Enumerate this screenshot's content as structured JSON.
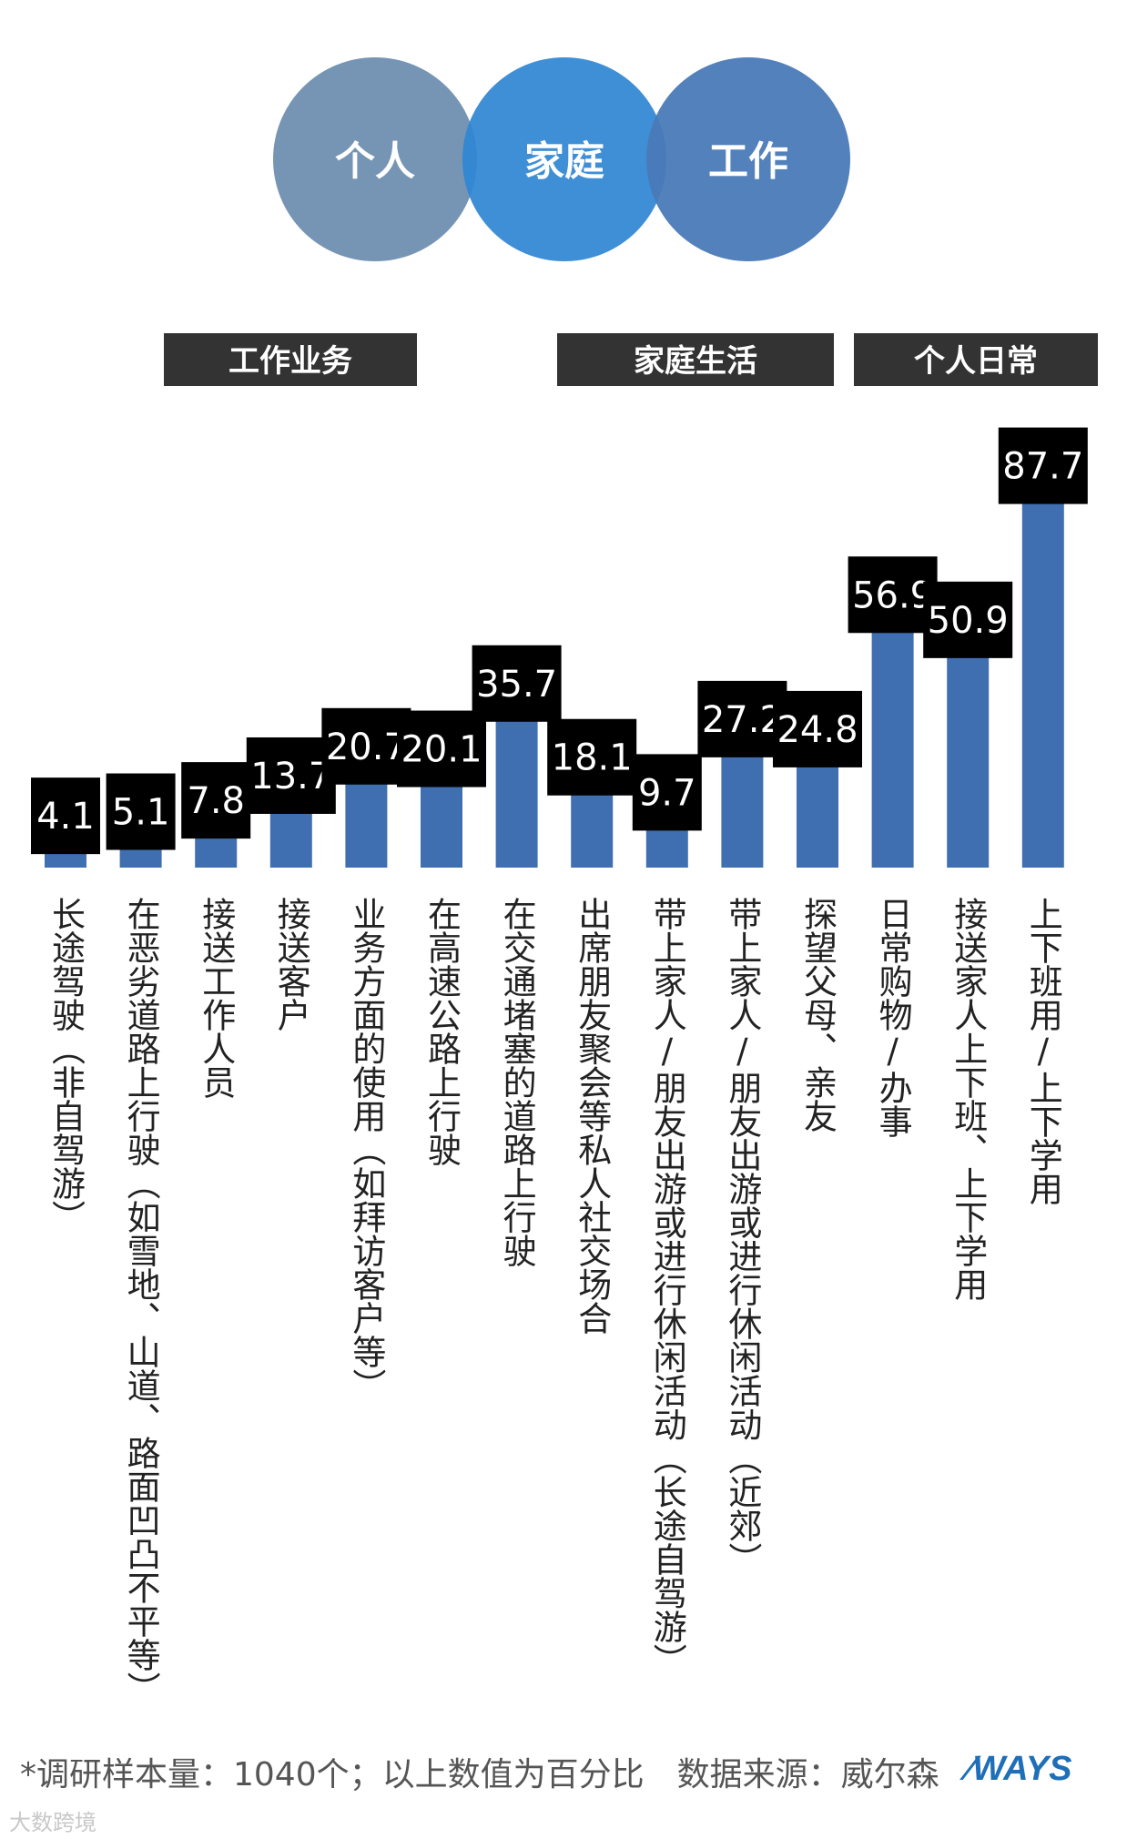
{
  "venn": {
    "labels": [
      "个人",
      "家庭",
      "工作"
    ],
    "colors": [
      "#6f8fb0",
      "#2f86d4",
      "#4a7ab8"
    ]
  },
  "groups": [
    "工作业务",
    "家庭生活",
    "个人日常"
  ],
  "colors": {
    "bar": "#3f6fb0",
    "label_bg": "#000000",
    "group_bg": "#333333"
  },
  "chart_data": {
    "type": "bar",
    "categories": [
      "长途驾驶（非自驾游）",
      "在恶劣道路上行驶（如雪地、山道、路面凹凸不平等）",
      "接送工作人员",
      "接送客户",
      "业务方面的使用（如拜访客户等）",
      "在高速公路上行驶",
      "在交通堵塞的道路上行驶",
      "出席朋友聚会等私人社交场合",
      "带上家人/朋友出游或进行休闲活动（长途自驾游）",
      "带上家人/朋友出游或进行休闲活动（近郊）",
      "探望父母、亲友",
      "日常购物/办事",
      "接送家人上下班、上下学用",
      "上下班用/上下学用"
    ],
    "values": [
      4.1,
      5.1,
      7.8,
      13.7,
      20.7,
      20.1,
      35.7,
      18.1,
      9.7,
      27.2,
      24.8,
      56.9,
      50.9,
      87.7
    ],
    "value_labels": [
      "4.1",
      "5.1",
      "7.8",
      "13.7",
      "20.7",
      "20.1",
      "35.7",
      "18.1",
      "9.7",
      "27.2",
      "24.8",
      "56.9",
      "50.9",
      "87.7"
    ],
    "ylim": [
      0,
      100
    ],
    "title": "",
    "xlabel": "",
    "ylabel": ""
  },
  "footer": {
    "note": "*调研样本量：1040个；以上数值为百分比",
    "source": "数据来源：威尔森",
    "logo_text": "WAYS"
  },
  "watermark": "大数跨境"
}
